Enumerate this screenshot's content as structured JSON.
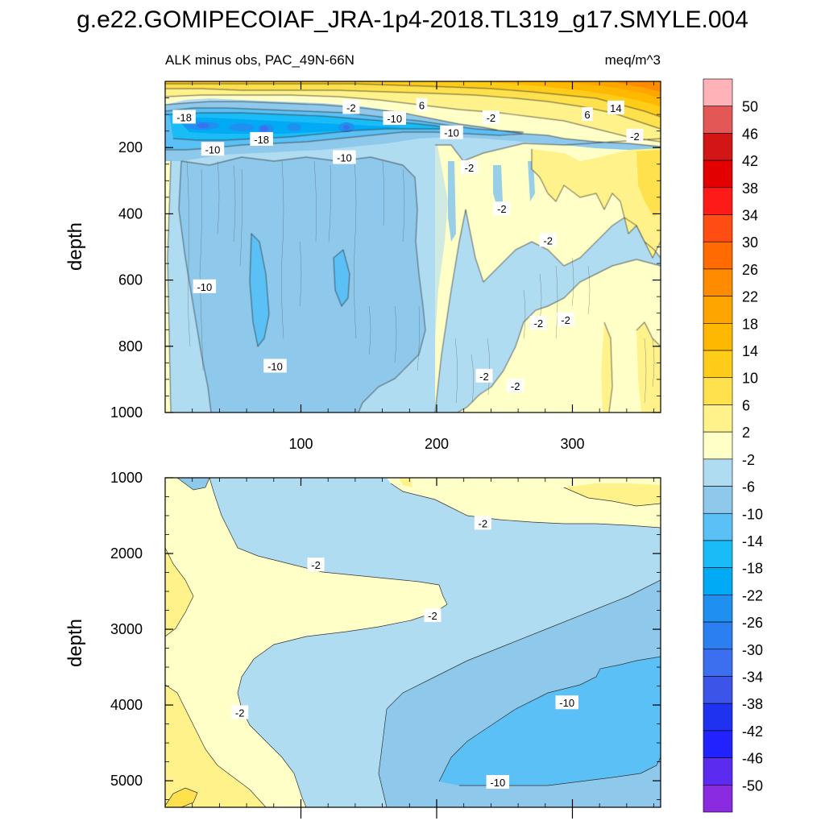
{
  "chart_data": {
    "type": "heatmap",
    "title": "g.e22.GOMIPECOIAF_JRA-1p4-2018.TL319_g17.SMYLE.004",
    "variable_label": "ALK minus obs, PAC_49N-66N",
    "units": "meq/m^3",
    "colorbar": {
      "levels": [
        "50",
        "46",
        "42",
        "38",
        "34",
        "30",
        "26",
        "22",
        "18",
        "14",
        "10",
        "6",
        "2",
        "-2",
        "-6",
        "-10",
        "-14",
        "-18",
        "-22",
        "-26",
        "-30",
        "-34",
        "-38",
        "-42",
        "-46",
        "-50"
      ],
      "colors": [
        "#ffb2b8",
        "#e35757",
        "#d21515",
        "#e20000",
        "#ff1a1a",
        "#ff4d14",
        "#ff6b00",
        "#ff8c00",
        "#ffa500",
        "#ffb800",
        "#ffcc1a",
        "#ffe14d",
        "#fff28a",
        "#ffffc8",
        "#b0dcf2",
        "#8ec9ec",
        "#5ac0f5",
        "#1abcf7",
        "#00aaf5",
        "#1f8ff0",
        "#2b7ff0",
        "#3b6ff0",
        "#3d54e8",
        "#1e32f0",
        "#2222ff",
        "#5b2bf0",
        "#8a2be2"
      ]
    },
    "panels": [
      {
        "name": "upper",
        "xlabel": "",
        "ylabel": "depth",
        "xlim": [
          0,
          365
        ],
        "ylim": [
          1000,
          0
        ],
        "xticks": [
          "100",
          "200",
          "300"
        ],
        "yticks": [
          "200",
          "400",
          "600",
          "800",
          "1000"
        ],
        "contour_labels": [
          {
            "text": "-18",
            "x": 14,
            "y": 108
          },
          {
            "text": "-2",
            "x": 137,
            "y": 79
          },
          {
            "text": "6",
            "x": 189,
            "y": 72
          },
          {
            "text": "-10",
            "x": 169,
            "y": 112
          },
          {
            "text": "-2",
            "x": 240,
            "y": 110
          },
          {
            "text": "6",
            "x": 311,
            "y": 100
          },
          {
            "text": "14",
            "x": 332,
            "y": 80
          },
          {
            "text": "-18",
            "x": 71,
            "y": 175
          },
          {
            "text": "-10",
            "x": 35,
            "y": 205
          },
          {
            "text": "-10",
            "x": 132,
            "y": 230
          },
          {
            "text": "-10",
            "x": 211,
            "y": 155
          },
          {
            "text": "-2",
            "x": 224,
            "y": 260
          },
          {
            "text": "-2",
            "x": 248,
            "y": 385
          },
          {
            "text": "-2",
            "x": 346,
            "y": 165
          },
          {
            "text": "-2",
            "x": 282,
            "y": 480
          },
          {
            "text": "-10",
            "x": 29,
            "y": 620
          },
          {
            "text": "-2",
            "x": 275,
            "y": 730
          },
          {
            "text": "-2",
            "x": 295,
            "y": 720
          },
          {
            "text": "-10",
            "x": 81,
            "y": 860
          },
          {
            "text": "-2",
            "x": 235,
            "y": 890
          },
          {
            "text": "-2",
            "x": 258,
            "y": 920
          }
        ]
      },
      {
        "name": "lower",
        "xlabel": "",
        "ylabel": "depth",
        "xlim": [
          0,
          365
        ],
        "ylim": [
          5350,
          1000
        ],
        "xticks": [],
        "yticks": [
          "1000",
          "2000",
          "3000",
          "4000",
          "5000"
        ],
        "contour_labels": [
          {
            "text": "-2",
            "x": 234,
            "y": 1600
          },
          {
            "text": "-2",
            "x": 111,
            "y": 2150
          },
          {
            "text": "-2",
            "x": 197,
            "y": 2820
          },
          {
            "text": "-2",
            "x": 55,
            "y": 4100
          },
          {
            "text": "-10",
            "x": 296,
            "y": 3970
          },
          {
            "text": "-10",
            "x": 245,
            "y": 5020
          }
        ]
      }
    ]
  }
}
